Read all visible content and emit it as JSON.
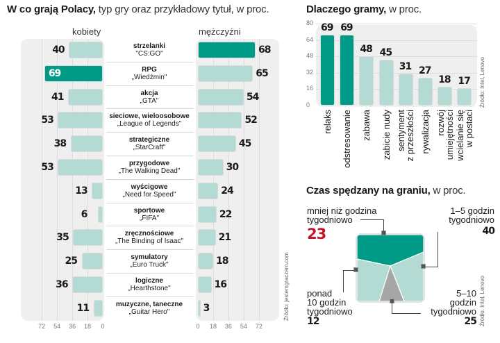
{
  "chart_data": [
    {
      "type": "bar",
      "orientation": "horizontal-butterfly",
      "title_bold": "W co grają Polacy,",
      "title_rest": " typ gry oraz przykładowy tytuł, w proc.",
      "left_header": "kobiety",
      "right_header": "mężczyźni",
      "xlim": [
        0,
        72
      ],
      "ticks_left": [
        "72",
        "54",
        "36",
        "18",
        "0"
      ],
      "ticks_right": [
        "0",
        "18",
        "36",
        "54",
        "72"
      ],
      "source": "Źródło: jestemgraczem.com",
      "highlight_color": "#009b87",
      "base_color": "#b3dbd3",
      "categories": [
        {
          "type": "strzelanki",
          "example": "\"CS:GO\""
        },
        {
          "type": "RPG",
          "example": "„Wiedźmin\""
        },
        {
          "type": "akcja",
          "example": "„GTA\""
        },
        {
          "type": "sieciowe, wieloosobowe",
          "example": "„League of Legends\""
        },
        {
          "type": "strategiczne",
          "example": "„StarCraft\""
        },
        {
          "type": "przygodowe",
          "example": "„The Walking Dead\""
        },
        {
          "type": "wyścigowe",
          "example": "„Need for Speed\""
        },
        {
          "type": "sportowe",
          "example": "„FIFA\""
        },
        {
          "type": "zręcznościowe",
          "example": "„The Binding of Isaac\""
        },
        {
          "type": "symulatory",
          "example": "„Euro Truck\""
        },
        {
          "type": "logiczne",
          "example": "„Hearthstone\""
        },
        {
          "type": "muzyczne, taneczne",
          "example": "„Guitar Hero\""
        }
      ],
      "series": [
        {
          "name": "kobiety",
          "values": [
            40,
            69,
            41,
            53,
            38,
            53,
            13,
            6,
            35,
            25,
            36,
            11
          ],
          "highlight_index": 1
        },
        {
          "name": "mężczyźni",
          "values": [
            68,
            65,
            54,
            52,
            45,
            30,
            24,
            22,
            21,
            18,
            16,
            3
          ],
          "highlight_index": 0
        }
      ]
    },
    {
      "type": "bar",
      "title_bold": "Dlaczego gramy,",
      "title_rest": " w proc.",
      "ylim": [
        0,
        80
      ],
      "yticks": [
        "80",
        "64",
        "48",
        "32",
        "16",
        "0"
      ],
      "source": "Źródło: Intel, Lenovo",
      "categories": [
        [
          "relaks"
        ],
        [
          "odstresowanie"
        ],
        [
          "zabawa"
        ],
        [
          "zabicie nudy"
        ],
        [
          "sentyment",
          "z przeszłości"
        ],
        [
          "rywalizacja"
        ],
        [
          "rozwój",
          "umiejętności"
        ],
        [
          "wcielanie się",
          "w postaci"
        ]
      ],
      "values": [
        69,
        69,
        48,
        45,
        31,
        27,
        18,
        17
      ],
      "highlight_indices": [
        0,
        1
      ]
    },
    {
      "type": "pie",
      "title_bold": "Czas spędzany na graniu,",
      "title_rest": " w proc.",
      "source": "Źródło: Intel, Lenovo",
      "slices": [
        {
          "label": [
            "mniej niż godzina",
            "tygodniowo"
          ],
          "value": 23,
          "color": "#009b87",
          "value_color": "#c0172c"
        },
        {
          "label": [
            "1–5 godzin",
            "tygodniowo"
          ],
          "value": 40,
          "color": "#b3dbd3"
        },
        {
          "label": [
            "5–10",
            "godzin",
            "tygodniowo"
          ],
          "value": 25,
          "color": "#a6a6a6"
        },
        {
          "label": [
            "ponad",
            "10 godzin",
            "tygodniowo"
          ],
          "value": 12,
          "color": "#b3dbd3"
        }
      ]
    }
  ]
}
